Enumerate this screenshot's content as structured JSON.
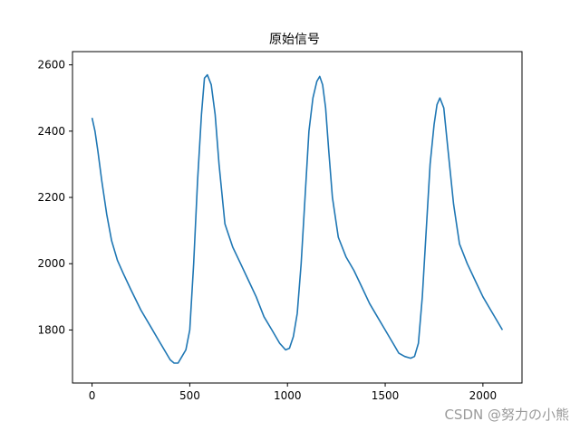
{
  "chart_data": {
    "type": "line",
    "title": "原始信号",
    "xlabel": "",
    "ylabel": "",
    "xlim": [
      -100,
      2200
    ],
    "ylim": [
      1640,
      2640
    ],
    "xticks": [
      0,
      500,
      1000,
      1500,
      2000
    ],
    "yticks": [
      1800,
      2000,
      2200,
      2400,
      2600
    ],
    "grid": false,
    "series": [
      {
        "color": "#1f77b4",
        "x": [
          0,
          15,
          30,
          50,
          75,
          100,
          130,
          160,
          200,
          250,
          300,
          350,
          380,
          400,
          420,
          440,
          460,
          480,
          500,
          520,
          540,
          560,
          575,
          590,
          610,
          630,
          650,
          680,
          720,
          760,
          800,
          840,
          880,
          920,
          960,
          990,
          1010,
          1030,
          1050,
          1070,
          1090,
          1110,
          1130,
          1150,
          1165,
          1180,
          1195,
          1210,
          1230,
          1260,
          1300,
          1340,
          1380,
          1420,
          1460,
          1500,
          1540,
          1570,
          1600,
          1630,
          1650,
          1670,
          1690,
          1710,
          1730,
          1750,
          1765,
          1780,
          1800,
          1820,
          1850,
          1880,
          1920,
          1960,
          2000,
          2040,
          2070,
          2100
        ],
        "y": [
          2440,
          2400,
          2340,
          2250,
          2150,
          2070,
          2010,
          1970,
          1920,
          1860,
          1810,
          1760,
          1730,
          1710,
          1700,
          1700,
          1720,
          1740,
          1800,
          2000,
          2250,
          2450,
          2560,
          2570,
          2540,
          2450,
          2300,
          2120,
          2050,
          2000,
          1950,
          1900,
          1840,
          1800,
          1760,
          1740,
          1745,
          1780,
          1850,
          2000,
          2200,
          2400,
          2500,
          2550,
          2565,
          2540,
          2470,
          2350,
          2200,
          2080,
          2020,
          1980,
          1930,
          1880,
          1840,
          1800,
          1760,
          1730,
          1720,
          1715,
          1720,
          1760,
          1900,
          2100,
          2300,
          2420,
          2480,
          2500,
          2470,
          2350,
          2180,
          2060,
          2000,
          1950,
          1900,
          1860,
          1830,
          1800
        ]
      }
    ]
  },
  "watermark": {
    "text": "CSDN @努力の小熊",
    "color": "#9a9a9a"
  }
}
